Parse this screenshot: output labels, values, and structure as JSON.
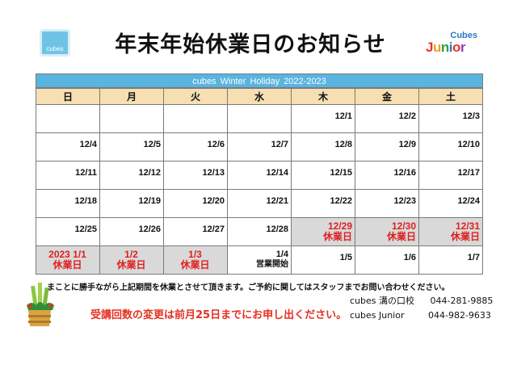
{
  "logo_left": {
    "text": "cubes"
  },
  "title": "年末年始休業日のお知らせ",
  "logo_right": {
    "top": "Cubes",
    "bottom_letters": [
      "J",
      "u",
      "n",
      "i",
      "o",
      "r"
    ],
    "bottom_colors": [
      "#e8312f",
      "#f39a1d",
      "#2a9d4a",
      "#2a78c8",
      "#e8312f",
      "#8a3fb5"
    ]
  },
  "calendar": {
    "banner": "cubes  Winter  Holiday    2022-2023",
    "weekdays": [
      "日",
      "月",
      "火",
      "水",
      "木",
      "金",
      "土"
    ],
    "rows": [
      [
        {
          "d": ""
        },
        {
          "d": ""
        },
        {
          "d": ""
        },
        {
          "d": ""
        },
        {
          "d": "12/1"
        },
        {
          "d": "12/2"
        },
        {
          "d": "12/3"
        }
      ],
      [
        {
          "d": "12/4"
        },
        {
          "d": "12/5"
        },
        {
          "d": "12/6"
        },
        {
          "d": "12/7"
        },
        {
          "d": "12/8"
        },
        {
          "d": "12/9"
        },
        {
          "d": "12/10"
        }
      ],
      [
        {
          "d": "12/11"
        },
        {
          "d": "12/12"
        },
        {
          "d": "12/13"
        },
        {
          "d": "12/14"
        },
        {
          "d": "12/15"
        },
        {
          "d": "12/16"
        },
        {
          "d": "12/17"
        }
      ],
      [
        {
          "d": "12/18"
        },
        {
          "d": "12/19"
        },
        {
          "d": "12/20"
        },
        {
          "d": "12/21"
        },
        {
          "d": "12/22"
        },
        {
          "d": "12/23"
        },
        {
          "d": "12/24"
        }
      ],
      [
        {
          "d": "12/25"
        },
        {
          "d": "12/26"
        },
        {
          "d": "12/27"
        },
        {
          "d": "12/28"
        },
        {
          "d": "12/29",
          "s": "休業日",
          "hol": true
        },
        {
          "d": "12/30",
          "s": "休業日",
          "hol": true
        },
        {
          "d": "12/31",
          "s": "休業日",
          "hol": true
        }
      ],
      [
        {
          "d": "2023  1/1",
          "s": "休業日",
          "hol": true
        },
        {
          "d": "1/2",
          "s": "休業日",
          "hol": true
        },
        {
          "d": "1/3",
          "s": "休業日",
          "hol": true
        },
        {
          "d": "1/4",
          "s2": "営業開始"
        },
        {
          "d": "1/5"
        },
        {
          "d": "1/6"
        },
        {
          "d": "1/7"
        }
      ]
    ]
  },
  "note": "まことに勝手ながら上記期間を休業とさせて頂きます。ご予約に関してはスタッフまでお問い合わせください。",
  "contacts": [
    {
      "name": "cubes 溝の口校",
      "phone": "044-281-9885"
    },
    {
      "name": "cubes Junior",
      "phone": "044-982-9633"
    }
  ],
  "red_note": "受講回数の変更は前月25日までにお申し出ください。",
  "colors": {
    "banner": "#5ab4e0",
    "weekday_header": "#f6dfb3",
    "holiday_bg": "#d9d9d9",
    "holiday_text": "#e02020",
    "notice_red": "#e53020"
  }
}
